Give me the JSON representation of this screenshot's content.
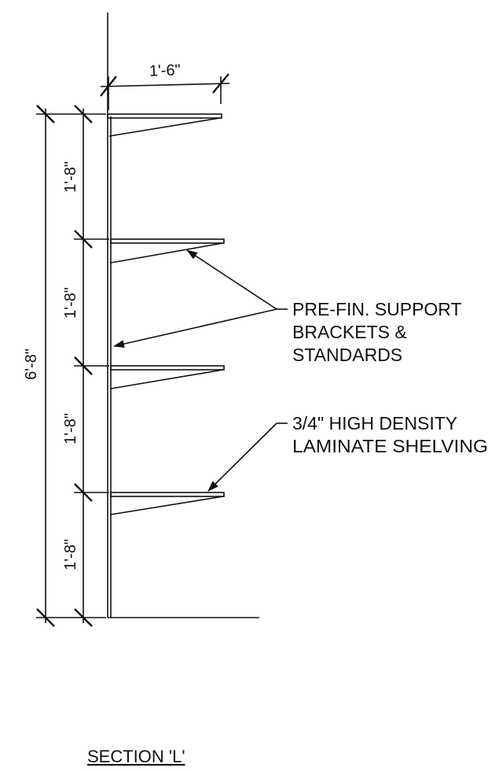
{
  "dimensions": {
    "shelf_depth": "1'-6\"",
    "overall_height": "6'-8\"",
    "spacing": [
      "1'-8\"",
      "1'-8\"",
      "1'-8\"",
      "1'-8\""
    ]
  },
  "notes": {
    "brackets": {
      "line1": "PRE-FIN. SUPPORT",
      "line2": "BRACKETS &",
      "line3": "STANDARDS"
    },
    "shelving": {
      "line1": "3/4\" HIGH DENSITY",
      "line2": "LAMINATE SHELVING"
    }
  },
  "title": "SECTION 'L'",
  "colors": {
    "line": "#111111",
    "background": "#ffffff"
  }
}
